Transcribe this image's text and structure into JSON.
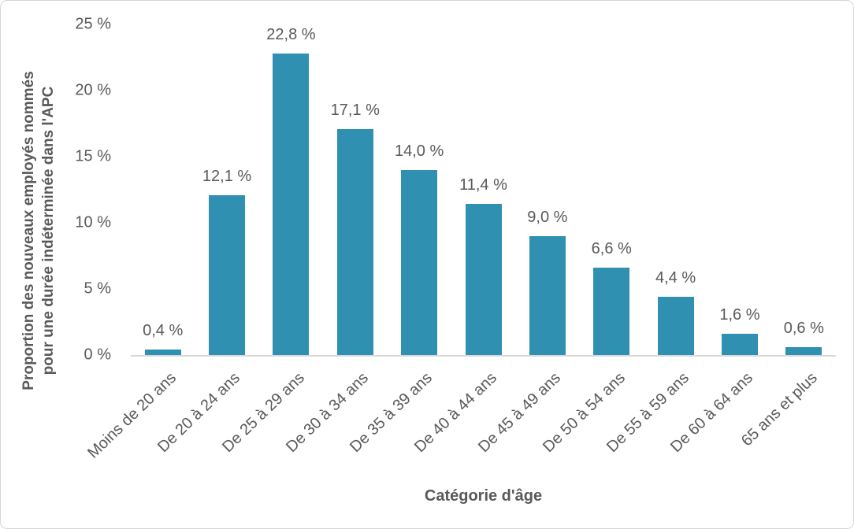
{
  "chart_data": {
    "type": "bar",
    "title": "",
    "categories": [
      "Moins de 20 ans",
      "De 20 à 24 ans",
      "De 25 à 29 ans",
      "De 30 à 34 ans",
      "De 35 à 39 ans",
      "De 40 à 44 ans",
      "De 45 à 49 ans",
      "De 50 à 54 ans",
      "De 55 à 59 ans",
      "De 60 à 64 ans",
      "65 ans et plus"
    ],
    "values": [
      0.4,
      12.1,
      22.8,
      17.1,
      14.0,
      11.4,
      9.0,
      6.6,
      4.4,
      1.6,
      0.6
    ],
    "value_labels": [
      "0,4 %",
      "12,1 %",
      "22,8 %",
      "17,1 %",
      "14,0 %",
      "11,4 %",
      "9,0 %",
      "6,6 %",
      "4,4 %",
      "1,6 %",
      "0,6 %"
    ],
    "xlabel": "Catégorie d'âge",
    "ylabel": "Proportion des nouveaux employés nommés pour une durée indéterminée dans l'APC",
    "ylabel_lines": [
      "Proportion des nouveaux employés nommés",
      "pour une durée indéterminée dans l'APC"
    ],
    "y_ticks": [
      {
        "value": 0,
        "label": "0 %"
      },
      {
        "value": 5,
        "label": "5 %"
      },
      {
        "value": 10,
        "label": "10 %"
      },
      {
        "value": 15,
        "label": "15 %"
      },
      {
        "value": 20,
        "label": "20 %"
      },
      {
        "value": 25,
        "label": "25 %"
      }
    ],
    "ylim": [
      0,
      25
    ],
    "grid": false,
    "legend": false,
    "colors": {
      "bar": "#3090B2",
      "axis_line": "#D9D9D9",
      "text": "#595959",
      "background": "#FFFFFF",
      "border": "#D6D6D6"
    }
  }
}
